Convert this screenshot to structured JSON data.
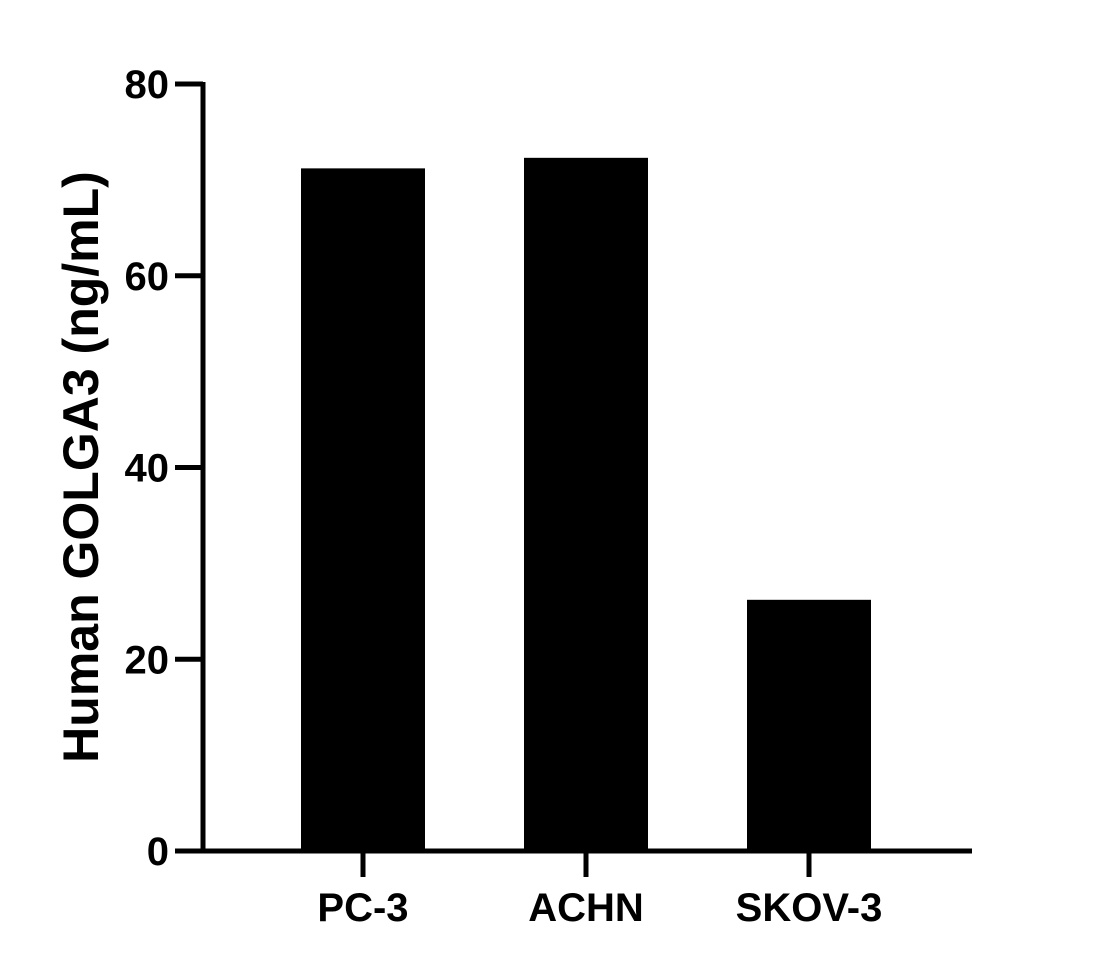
{
  "chart_data": {
    "type": "bar",
    "categories": [
      "PC-3",
      "ACHN",
      "SKOV-3"
    ],
    "series": [
      {
        "values": [
          71.2,
          72.3,
          26.2
        ]
      }
    ],
    "title": "",
    "xlabel": "",
    "ylabel": "Human GOLGA3 (ng/mL)",
    "ylim": [
      0,
      80
    ],
    "yticks": [
      0,
      20,
      40,
      60,
      80
    ],
    "grid": false,
    "legend": "none",
    "colors": {
      "bar": "#000000",
      "axis": "#000000",
      "background": "#ffffff"
    }
  }
}
